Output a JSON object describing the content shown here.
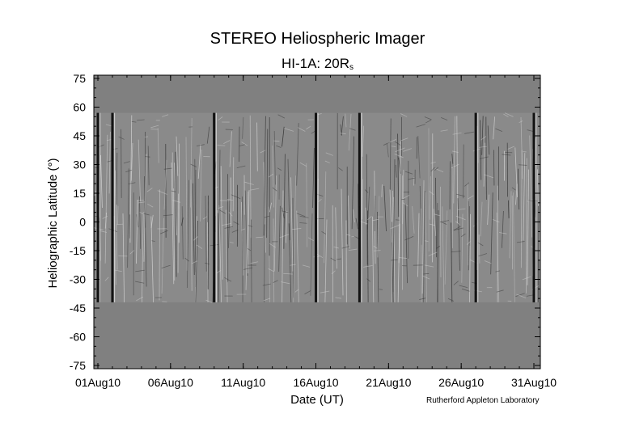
{
  "title": "STEREO Heliospheric Imager",
  "subtitle": {
    "main": "HI-1A: 20R",
    "sub": "s"
  },
  "credit": "Rutherford Appleton Laboratory",
  "colors": {
    "background": "#ffffff",
    "nodata": "#808080",
    "axis": "#000000"
  },
  "chart_data": {
    "type": "heatmap",
    "title": "STEREO Heliospheric Imager",
    "subtitle": "HI-1A: 20Rs",
    "xlabel": "Date (UT)",
    "ylabel": "Heliographic Latitude (°)",
    "x_ticks": [
      "01Aug10",
      "06Aug10",
      "11Aug10",
      "16Aug10",
      "21Aug10",
      "26Aug10",
      "31Aug10"
    ],
    "x_tick_dates": [
      "2010-08-01",
      "2010-08-06",
      "2010-08-11",
      "2010-08-16",
      "2010-08-21",
      "2010-08-26",
      "2010-08-31"
    ],
    "xlim": [
      "2010-08-01",
      "2010-08-31"
    ],
    "y_ticks": [
      75,
      60,
      45,
      30,
      15,
      0,
      -15,
      -30,
      -45,
      -60,
      -75
    ],
    "ylim": [
      -75,
      75
    ],
    "data_band_latitude": [
      -42,
      57
    ],
    "dark_streak_dates": [
      "2010-08-01",
      "2010-08-02",
      "2010-08-09",
      "2010-08-16",
      "2010-08-19",
      "2010-08-27",
      "2010-08-31"
    ],
    "colormap": "grayscale difference image",
    "grid": false
  }
}
